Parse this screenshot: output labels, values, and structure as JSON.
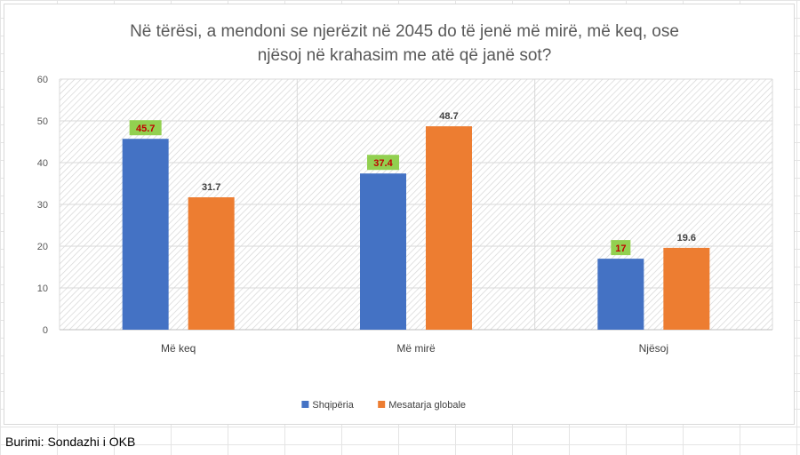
{
  "source_note": "Burimi: Sondazhi i OKB",
  "chart_data": {
    "type": "bar",
    "title": "Në tërësi, a mendoni se njerëzit në 2045 do të jenë më mirë, më keq, ose njësoj në krahasim me atë që janë sot?",
    "title_lines": [
      "Në tërësi, a mendoni se njerëzit në 2045 do të jenë më mirë, më keq, ose",
      "njësoj në krahasim me atë që janë sot?"
    ],
    "categories": [
      "Më keq",
      "Më mirë",
      "Njësoj"
    ],
    "series": [
      {
        "name": "Shqipëria",
        "values": [
          45.7,
          37.4,
          17
        ],
        "labels": [
          "45.7",
          "37.4",
          "17"
        ],
        "color": "#4472c4",
        "label_bg": "#92d050",
        "label_color": "#c00000"
      },
      {
        "name": "Mesatarja globale",
        "values": [
          31.7,
          48.7,
          19.6
        ],
        "labels": [
          "31.7",
          "48.7",
          "19.6"
        ],
        "color": "#ed7d31",
        "label_bg": "",
        "label_color": "#404040"
      }
    ],
    "ylim": [
      0,
      60
    ],
    "yticks": [
      "0",
      "10",
      "20",
      "30",
      "40",
      "50",
      "60"
    ],
    "ytick_values": [
      0,
      10,
      20,
      30,
      40,
      50,
      60
    ],
    "grid": true,
    "plot_background": "hatched",
    "legend_position": "bottom"
  }
}
